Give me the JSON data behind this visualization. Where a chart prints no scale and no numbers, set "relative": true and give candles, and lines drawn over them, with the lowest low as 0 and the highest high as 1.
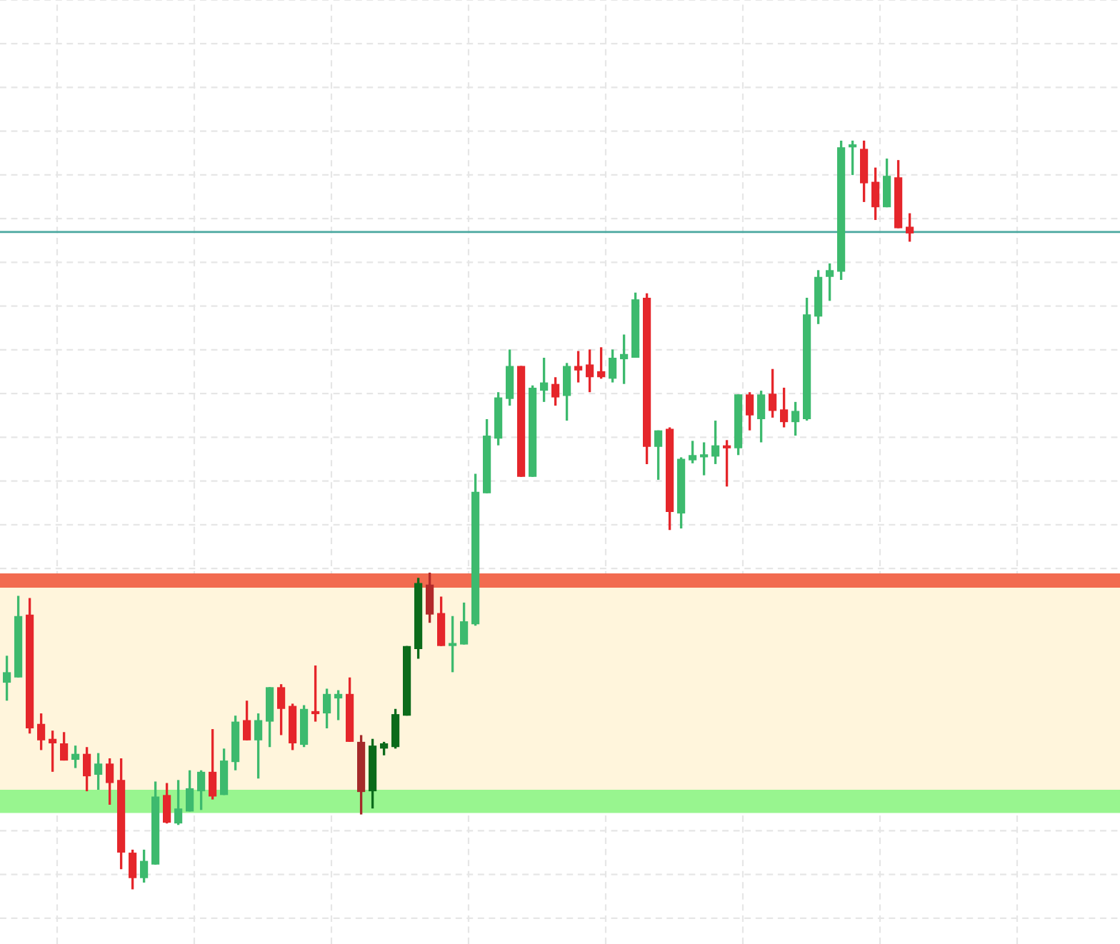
{
  "chart_data": {
    "type": "candlestick",
    "relative": true,
    "grid": true,
    "tick_labels": false,
    "categories": [
      null,
      null,
      null,
      null,
      null,
      null,
      null,
      null,
      null,
      null,
      null,
      null,
      null,
      null,
      null,
      null,
      null,
      null,
      null,
      null,
      null,
      null,
      null,
      null,
      null,
      null,
      null,
      null,
      null,
      null,
      null,
      null,
      null,
      null,
      null,
      null,
      null,
      null,
      null,
      null,
      null,
      null,
      null,
      null,
      null,
      null,
      null,
      null,
      null,
      null,
      null,
      null,
      null,
      null,
      null,
      null,
      null,
      null,
      null,
      null,
      null,
      null,
      null,
      null,
      null,
      null,
      null,
      null,
      null,
      null,
      null,
      null,
      null,
      null,
      null,
      null,
      null,
      null,
      null,
      null,
      null,
      null,
      null,
      null,
      null,
      null,
      null,
      null,
      null,
      null,
      null,
      null,
      null,
      null,
      null,
      null,
      null,
      null
    ],
    "ohlc": [
      [
        0.276,
        0.312,
        0.252,
        0.29
      ],
      [
        0.283,
        0.392,
        0.283,
        0.365
      ],
      [
        0.367,
        0.389,
        0.208,
        0.215
      ],
      [
        0.221,
        0.235,
        0.186,
        0.199
      ],
      [
        0.201,
        0.212,
        0.157,
        0.195
      ],
      [
        0.195,
        0.21,
        0.172,
        0.172
      ],
      [
        0.173,
        0.192,
        0.162,
        0.181
      ],
      [
        0.181,
        0.19,
        0.131,
        0.151
      ],
      [
        0.153,
        0.182,
        0.133,
        0.168
      ],
      [
        0.168,
        0.175,
        0.113,
        0.142
      ],
      [
        0.146,
        0.175,
        0.027,
        0.049
      ],
      [
        0.049,
        0.053,
        0.0,
        0.015
      ],
      [
        0.015,
        0.053,
        0.009,
        0.038
      ],
      [
        0.033,
        0.144,
        0.033,
        0.124
      ],
      [
        0.126,
        0.142,
        0.088,
        0.089
      ],
      [
        0.088,
        0.146,
        0.086,
        0.108
      ],
      [
        0.104,
        0.159,
        0.104,
        0.135
      ],
      [
        0.131,
        0.159,
        0.106,
        0.157
      ],
      [
        0.157,
        0.214,
        0.12,
        0.124
      ],
      [
        0.126,
        0.188,
        0.126,
        0.172
      ],
      [
        0.17,
        0.232,
        0.159,
        0.224
      ],
      [
        0.226,
        0.252,
        0.199,
        0.199
      ],
      [
        0.199,
        0.235,
        0.148,
        0.226
      ],
      [
        0.224,
        0.27,
        0.19,
        0.27
      ],
      [
        0.27,
        0.274,
        0.206,
        0.241
      ],
      [
        0.245,
        0.248,
        0.186,
        0.195
      ],
      [
        0.193,
        0.246,
        0.19,
        0.241
      ],
      [
        0.237,
        0.299,
        0.224,
        0.234
      ],
      [
        0.235,
        0.268,
        0.215,
        0.261
      ],
      [
        0.255,
        0.266,
        0.226,
        0.261
      ],
      [
        0.261,
        0.283,
        0.197,
        0.197
      ],
      [
        0.197,
        0.206,
        0.1,
        0.13
      ],
      [
        0.131,
        0.201,
        0.108,
        0.192
      ],
      [
        0.188,
        0.197,
        0.179,
        0.195
      ],
      [
        0.19,
        0.241,
        0.188,
        0.234
      ],
      [
        0.232,
        0.325,
        0.232,
        0.325
      ],
      [
        0.321,
        0.416,
        0.308,
        0.409
      ],
      [
        0.407,
        0.423,
        0.356,
        0.367
      ],
      [
        0.369,
        0.391,
        0.325,
        0.325
      ],
      [
        0.325,
        0.365,
        0.29,
        0.328
      ],
      [
        0.327,
        0.383,
        0.327,
        0.358
      ],
      [
        0.354,
        0.555,
        0.352,
        0.531
      ],
      [
        0.529,
        0.628,
        0.529,
        0.606
      ],
      [
        0.602,
        0.664,
        0.593,
        0.657
      ],
      [
        0.655,
        0.721,
        0.646,
        0.699
      ],
      [
        0.699,
        0.699,
        0.551,
        0.551
      ],
      [
        0.551,
        0.673,
        0.551,
        0.67
      ],
      [
        0.666,
        0.71,
        0.651,
        0.677
      ],
      [
        0.675,
        0.684,
        0.646,
        0.657
      ],
      [
        0.659,
        0.703,
        0.626,
        0.699
      ],
      [
        0.699,
        0.719,
        0.677,
        0.693
      ],
      [
        0.701,
        0.721,
        0.664,
        0.684
      ],
      [
        0.692,
        0.724,
        0.682,
        0.684
      ],
      [
        0.682,
        0.721,
        0.677,
        0.71
      ],
      [
        0.708,
        0.741,
        0.675,
        0.715
      ],
      [
        0.71,
        0.797,
        0.71,
        0.788
      ],
      [
        0.79,
        0.796,
        0.568,
        0.591
      ],
      [
        0.591,
        0.613,
        0.547,
        0.613
      ],
      [
        0.615,
        0.617,
        0.48,
        0.504
      ],
      [
        0.502,
        0.577,
        0.482,
        0.575
      ],
      [
        0.573,
        0.599,
        0.569,
        0.58
      ],
      [
        0.577,
        0.597,
        0.553,
        0.58
      ],
      [
        0.578,
        0.626,
        0.568,
        0.593
      ],
      [
        0.593,
        0.6,
        0.538,
        0.589
      ],
      [
        0.589,
        0.661,
        0.58,
        0.661
      ],
      [
        0.661,
        0.664,
        0.613,
        0.633
      ],
      [
        0.628,
        0.666,
        0.597,
        0.661
      ],
      [
        0.662,
        0.695,
        0.63,
        0.639
      ],
      [
        0.641,
        0.67,
        0.617,
        0.624
      ],
      [
        0.624,
        0.651,
        0.606,
        0.639
      ],
      [
        0.628,
        0.79,
        0.626,
        0.768
      ],
      [
        0.765,
        0.827,
        0.755,
        0.818
      ],
      [
        0.818,
        0.836,
        0.786,
        0.827
      ],
      [
        0.825,
        1.0,
        0.814,
        0.991
      ],
      [
        0.991,
        1.0,
        0.954,
        0.993
      ],
      [
        0.989,
        1.0,
        0.918,
        0.943
      ],
      [
        0.945,
        0.964,
        0.894,
        0.911
      ],
      [
        0.911,
        0.976,
        0.911,
        0.953
      ],
      [
        0.951,
        0.974,
        0.883,
        0.883
      ],
      [
        0.885,
        0.903,
        0.865,
        0.876
      ],
      null,
      null,
      null,
      null,
      null,
      null,
      null,
      null,
      null,
      null,
      null,
      null,
      null,
      null,
      null,
      null,
      null,
      null
    ],
    "colors": [
      "#3dba6e",
      "#3dba6e",
      "#e5262b",
      "#e5262b",
      "#e5262b",
      "#e5262b",
      "#3dba6e",
      "#e5262b",
      "#3dba6e",
      "#e5262b",
      "#e5262b",
      "#e5262b",
      "#3dba6e",
      "#3dba6e",
      "#e5262b",
      "#3dba6e",
      "#3dba6e",
      "#3dba6e",
      "#e5262b",
      "#3dba6e",
      "#3dba6e",
      "#e5262b",
      "#3dba6e",
      "#3dba6e",
      "#e5262b",
      "#e5262b",
      "#3dba6e",
      "#e5262b",
      "#3dba6e",
      "#3dba6e",
      "#e5262b",
      "#a52a2a",
      "#0b6b1b",
      "#0b6b1b",
      "#0b6b1b",
      "#0b6b1b",
      "#0b6b1b",
      "#b22a2a",
      "#e5262b",
      "#3dba6e",
      "#3dba6e",
      "#3dba6e",
      "#3dba6e",
      "#3dba6e",
      "#3dba6e",
      "#e5262b",
      "#3dba6e",
      "#3dba6e",
      "#e5262b",
      "#3dba6e",
      "#e5262b",
      "#e5262b",
      "#e5262b",
      "#3dba6e",
      "#3dba6e",
      "#3dba6e",
      "#e5262b",
      "#3dba6e",
      "#e5262b",
      "#3dba6e",
      "#3dba6e",
      "#3dba6e",
      "#3dba6e",
      "#e5262b",
      "#3dba6e",
      "#e5262b",
      "#3dba6e",
      "#e5262b",
      "#e5262b",
      "#3dba6e",
      "#3dba6e",
      "#3dba6e",
      "#3dba6e",
      "#3dba6e",
      "#3dba6e",
      "#e5262b",
      "#e5262b",
      "#3dba6e",
      "#e5262b",
      "#e5262b",
      null,
      null,
      null,
      null,
      null,
      null,
      null,
      null,
      null,
      null,
      null,
      null,
      null,
      null,
      null,
      null,
      null,
      null
    ],
    "ref_lines": [
      {
        "axis": "y",
        "value": 0.878,
        "color": "#4aa8a0"
      }
    ],
    "bands": [
      {
        "axis": "y",
        "from": 0.403,
        "to": 0.422,
        "color": "#f26b50"
      },
      {
        "axis": "y",
        "from": 0.133,
        "to": 0.403,
        "color": "#fff5dc"
      },
      {
        "axis": "y",
        "from": 0.102,
        "to": 0.133,
        "color": "#98f58f"
      }
    ]
  }
}
